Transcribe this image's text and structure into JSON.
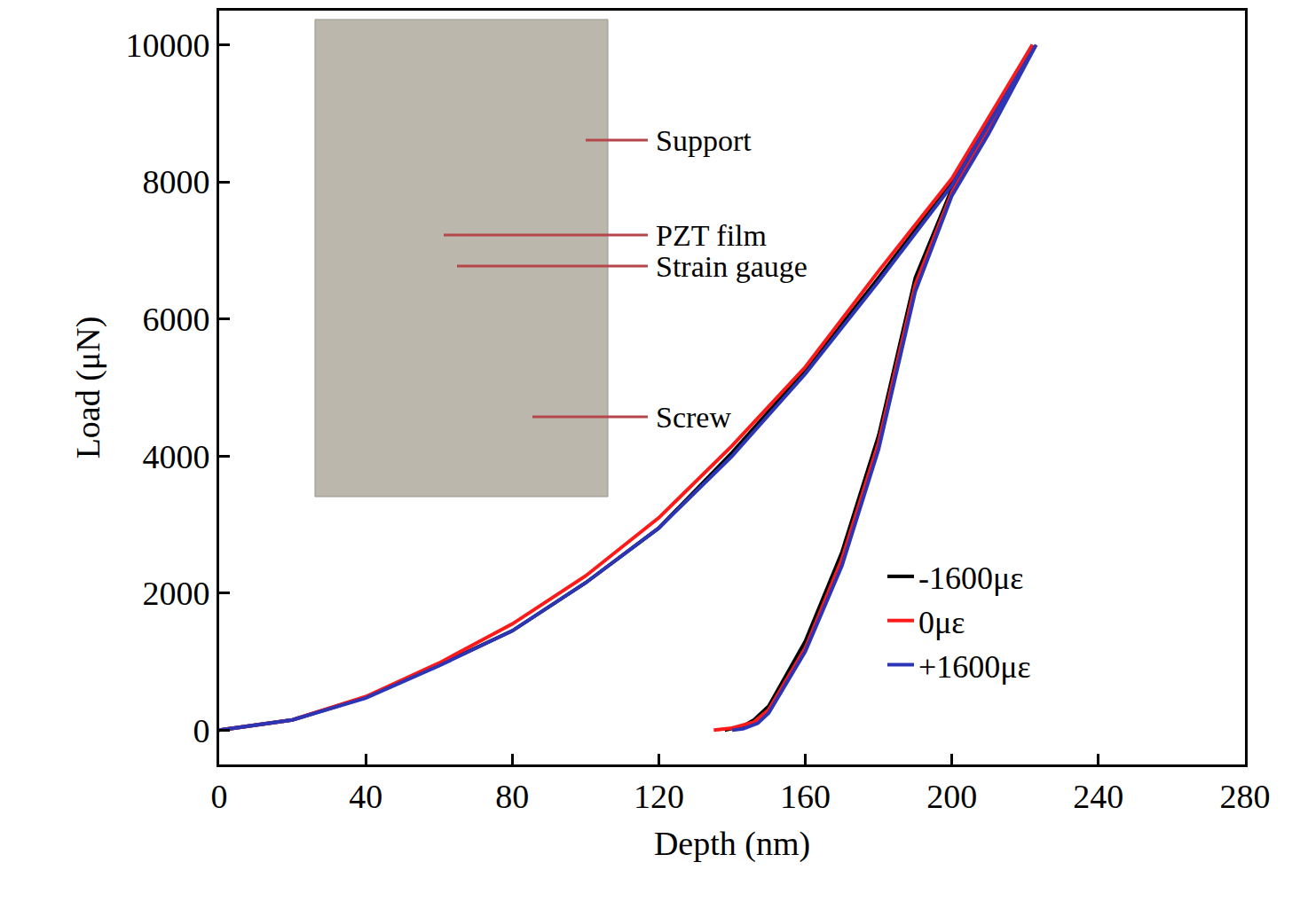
{
  "chart_data": {
    "type": "line",
    "x_label": "Depth (nm)",
    "y_label": "Load (μN)",
    "xlim": [
      0,
      280
    ],
    "xticks": [
      0,
      40,
      80,
      120,
      160,
      200,
      240,
      280
    ],
    "ylim": [
      -500,
      10500
    ],
    "yticks": [
      0,
      2000,
      4000,
      6000,
      8000,
      10000
    ],
    "grid": false,
    "legend": "bottom right",
    "annotations": [
      "Support",
      "PZT film",
      "Strain gauge",
      "Screw"
    ],
    "series": [
      {
        "name": "-1600με",
        "color": "#000000",
        "x": [
          0,
          20,
          40,
          60,
          80,
          100,
          120,
          140,
          160,
          180,
          200,
          222,
          210,
          200,
          190,
          180,
          170,
          160,
          150,
          146,
          143,
          138
        ],
        "values": [
          0,
          150,
          480,
          950,
          1450,
          2150,
          2950,
          4050,
          5250,
          6600,
          8000,
          10000,
          8800,
          7900,
          6600,
          4300,
          2600,
          1300,
          350,
          150,
          60,
          0
        ]
      },
      {
        "name": "0με",
        "color": "#ff1a1a",
        "x": [
          0,
          20,
          40,
          60,
          80,
          100,
          120,
          140,
          160,
          180,
          200,
          222,
          210,
          200,
          190,
          180,
          170,
          160,
          150,
          146,
          140,
          135
        ],
        "values": [
          0,
          150,
          490,
          980,
          1550,
          2250,
          3100,
          4150,
          5300,
          6700,
          8050,
          10000,
          8750,
          7850,
          6500,
          4200,
          2500,
          1200,
          300,
          120,
          30,
          0
        ]
      },
      {
        "name": "+1600με",
        "color": "#2b35b5",
        "x": [
          0,
          20,
          40,
          60,
          80,
          100,
          120,
          140,
          160,
          180,
          200,
          223,
          210,
          200,
          190,
          180,
          170,
          160,
          150,
          147,
          143,
          140
        ],
        "values": [
          0,
          150,
          470,
          940,
          1450,
          2150,
          2950,
          4000,
          5200,
          6550,
          7950,
          10000,
          8700,
          7800,
          6400,
          4100,
          2400,
          1150,
          250,
          100,
          20,
          0
        ]
      }
    ]
  }
}
